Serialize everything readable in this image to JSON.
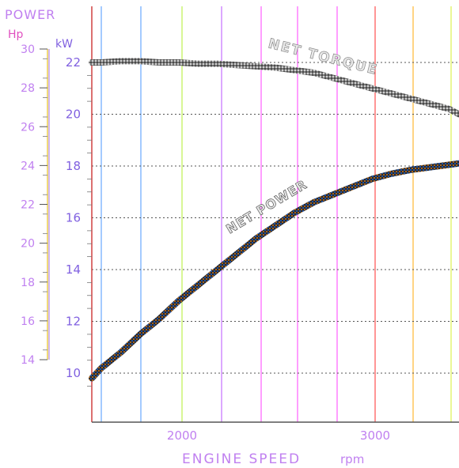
{
  "chart_data": {
    "type": "line",
    "title": "",
    "left_axis": {
      "title": "POWER",
      "unit": "Hp",
      "ticks": [
        30,
        28,
        26,
        24,
        22,
        20,
        18,
        16,
        14
      ],
      "range": [
        14,
        30
      ],
      "tick_labels": [
        "30",
        "28",
        "26",
        "24",
        "22",
        "20",
        "18",
        "16",
        "14"
      ]
    },
    "right_axis": {
      "unit": "kW",
      "ticks": [
        22,
        20,
        18,
        16,
        14,
        12,
        10
      ],
      "range": [
        9,
        24
      ],
      "tick_labels": [
        "22",
        "20",
        "18",
        "16",
        "14",
        "12",
        "10"
      ]
    },
    "x_axis": {
      "label": "ENGINE SPEED",
      "unit": "rpm",
      "ticks": [
        2000,
        3000
      ],
      "tick_labels": [
        "2000",
        "3000"
      ],
      "range": [
        1550,
        3450
      ]
    },
    "grid": true,
    "series": [
      {
        "name": "NET TORQUE",
        "color": "#8a8a8a",
        "x": [
          1550,
          1600,
          1700,
          1800,
          1900,
          2000,
          2100,
          2200,
          2300,
          2400,
          2500,
          2600,
          2700,
          2800,
          2900,
          3000,
          3100,
          3200,
          3300,
          3400,
          3450
        ],
        "y": [
          22.0,
          22.0,
          22.05,
          22.05,
          22.0,
          22.0,
          21.95,
          21.95,
          21.9,
          21.85,
          21.8,
          21.7,
          21.6,
          21.4,
          21.2,
          21.0,
          20.8,
          20.6,
          20.4,
          20.2,
          20.0
        ]
      },
      {
        "name": "NET POWER",
        "color": "#333333",
        "x": [
          1550,
          1600,
          1700,
          1800,
          1900,
          2000,
          2100,
          2200,
          2300,
          2400,
          2500,
          2600,
          2700,
          2800,
          2900,
          3000,
          3100,
          3200,
          3300,
          3400,
          3450
        ],
        "y": [
          9.8,
          10.2,
          10.8,
          11.5,
          12.1,
          12.8,
          13.4,
          14.0,
          14.6,
          15.2,
          15.7,
          16.2,
          16.6,
          16.9,
          17.2,
          17.5,
          17.7,
          17.85,
          17.95,
          18.05,
          18.1
        ]
      }
    ]
  },
  "labels": {
    "power_title": "POWER",
    "hp_unit": "Hp",
    "kw_unit": "kW",
    "x_axis_label": "ENGINE SPEED",
    "x_axis_unit": "rpm",
    "torque_curve": "NET TORQUE",
    "power_curve": "NET POWER"
  },
  "colors": {
    "vertical_gridlines": [
      "#ff2a2a",
      "#5aa0ff",
      "#5aa0ff",
      "#b8f040",
      "#c060ff",
      "#ff50ff",
      "#ff50ff",
      "#ff50ff",
      "#ff4040",
      "#ffb020",
      "#d8f040"
    ],
    "horizontal_gridline": "#555555",
    "axis_text": "#c080f0"
  }
}
